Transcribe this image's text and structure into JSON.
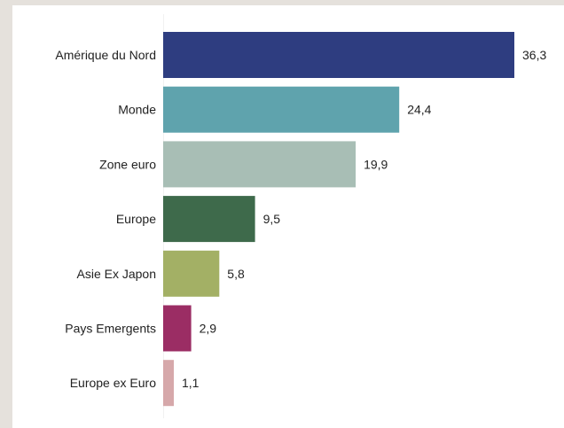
{
  "chart_data": {
    "type": "bar",
    "orientation": "horizontal",
    "categories": [
      "Amérique du Nord",
      "Monde",
      "Zone euro",
      "Europe",
      "Asie Ex Japon",
      "Pays Emergents",
      "Europe ex Euro"
    ],
    "values": [
      36.3,
      24.4,
      19.9,
      9.5,
      5.8,
      2.9,
      1.1
    ],
    "value_labels": [
      "36,3",
      "24,4",
      "19,9",
      "9,5",
      "5,8",
      "2,9",
      "1,1"
    ],
    "colors": [
      "#2e3d80",
      "#5fa3ad",
      "#a8beb5",
      "#3e6a4b",
      "#a3b065",
      "#9b2d64",
      "#d6a8aa"
    ],
    "title": "",
    "xlabel": "",
    "ylabel": "",
    "xlim": [
      0,
      36.3
    ],
    "grid": false,
    "legend": "none"
  }
}
